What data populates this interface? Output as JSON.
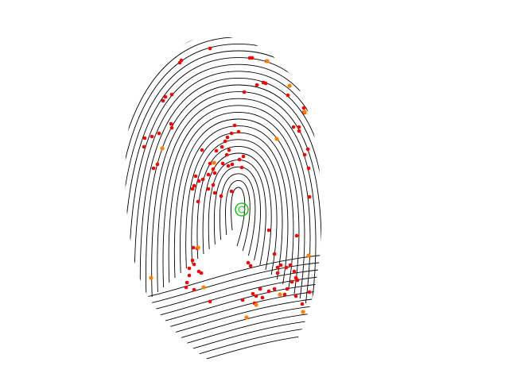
{
  "colors": {
    "background": "#ffffff",
    "ridge": "#000000",
    "minutia_primary": "#ff0000",
    "minutia_secondary": "#ff8000",
    "core_marker": "#00c000"
  },
  "minutiae_counts": {
    "red_points_approx": 110,
    "orange_points_approx": 12
  }
}
